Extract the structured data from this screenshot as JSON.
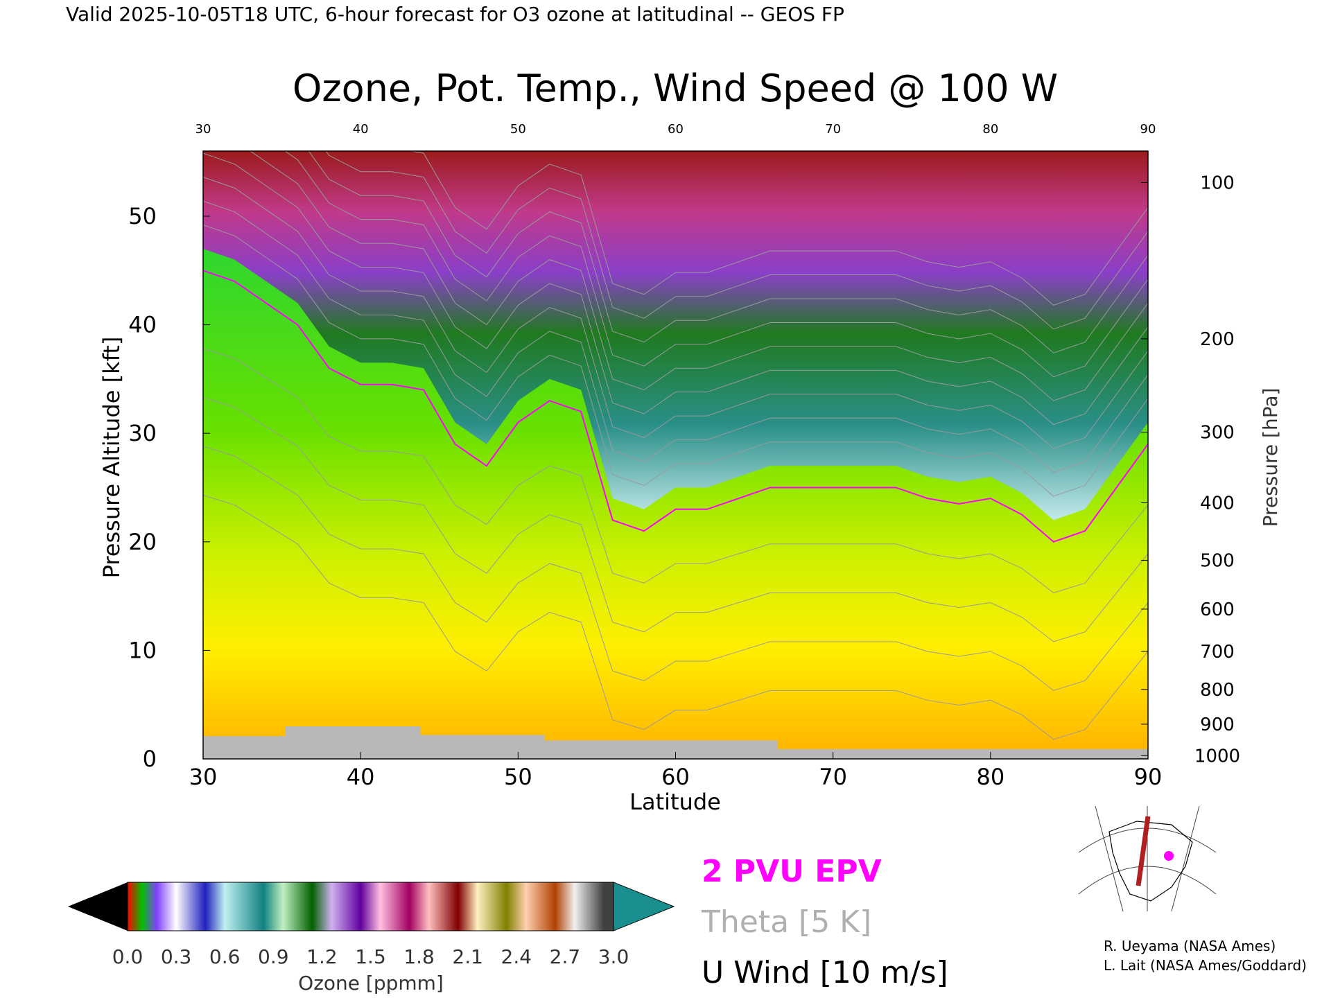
{
  "header": {
    "valid_line": "Valid 2025-10-05T18 UTC, 6-hour forecast for O3 ozone at latitudinal -- GEOS FP"
  },
  "chart_data": {
    "type": "heatmap",
    "title": "Ozone, Pot. Temp., Wind Speed @ 100 W",
    "xlabel": "Latitude",
    "ylabel": "Pressure Altitude [kft]",
    "y2label": "Pressure [hPa]",
    "xlim": [
      30,
      90
    ],
    "ylim": [
      0,
      56
    ],
    "x_ticks": [
      "30",
      "40",
      "50",
      "60",
      "70",
      "80",
      "90"
    ],
    "y_ticks": [
      "0",
      "10",
      "20",
      "30",
      "40",
      "50"
    ],
    "pressure_ticks": [
      {
        "label": "100",
        "kft": 53.1
      },
      {
        "label": "200",
        "kft": 38.7
      },
      {
        "label": "300",
        "kft": 30.1
      },
      {
        "label": "400",
        "kft": 23.6
      },
      {
        "label": "500",
        "kft": 18.3
      },
      {
        "label": "600",
        "kft": 13.8
      },
      {
        "label": "700",
        "kft": 9.9
      },
      {
        "label": "800",
        "kft": 6.4
      },
      {
        "label": "900",
        "kft": 3.2
      },
      {
        "label": "1000",
        "kft": 0.3
      }
    ],
    "tropopause_kft": [
      [
        30,
        47
      ],
      [
        32,
        46
      ],
      [
        34,
        44
      ],
      [
        36,
        42
      ],
      [
        38,
        38
      ],
      [
        40,
        36.5
      ],
      [
        42,
        36.5
      ],
      [
        44,
        36
      ],
      [
        46,
        31
      ],
      [
        48,
        29
      ],
      [
        50,
        33
      ],
      [
        52,
        35
      ],
      [
        54,
        34
      ],
      [
        56,
        24
      ],
      [
        58,
        23
      ],
      [
        60,
        25
      ],
      [
        62,
        25
      ],
      [
        64,
        26
      ],
      [
        66,
        27
      ],
      [
        68,
        27
      ],
      [
        70,
        27
      ],
      [
        72,
        27
      ],
      [
        74,
        27
      ],
      [
        76,
        26
      ],
      [
        78,
        25.5
      ],
      [
        80,
        26
      ],
      [
        82,
        24.5
      ],
      [
        84,
        22
      ],
      [
        86,
        23
      ],
      [
        88,
        27
      ],
      [
        90,
        31
      ]
    ],
    "terrain_kft": [
      [
        30,
        2.1
      ],
      [
        35.2,
        2.1
      ],
      [
        35.2,
        3.0
      ],
      [
        43.8,
        3.0
      ],
      [
        43.8,
        2.2
      ],
      [
        51.7,
        2.2
      ],
      [
        51.7,
        1.7
      ],
      [
        66.5,
        1.7
      ],
      [
        66.5,
        0.9
      ],
      [
        90,
        0.9
      ]
    ],
    "colorbar": {
      "label": "Ozone [ppmm]",
      "ticks": [
        "0.0",
        "0.3",
        "0.6",
        "0.9",
        "1.2",
        "1.5",
        "1.8",
        "2.1",
        "2.4",
        "2.7",
        "3.0"
      ],
      "min": 0.0,
      "max": 3.0
    },
    "legend": [
      {
        "label": "2 PVU EPV",
        "color": "#ff00ff"
      },
      {
        "label": "Theta [5 K]",
        "color": "#aaaaaa"
      },
      {
        "label": "U Wind [10 m/s]",
        "color": "#000000"
      }
    ]
  },
  "credits": {
    "line1": "R. Ueyama (NASA Ames)",
    "line2": "L. Lait (NASA Ames/Goddard)"
  }
}
